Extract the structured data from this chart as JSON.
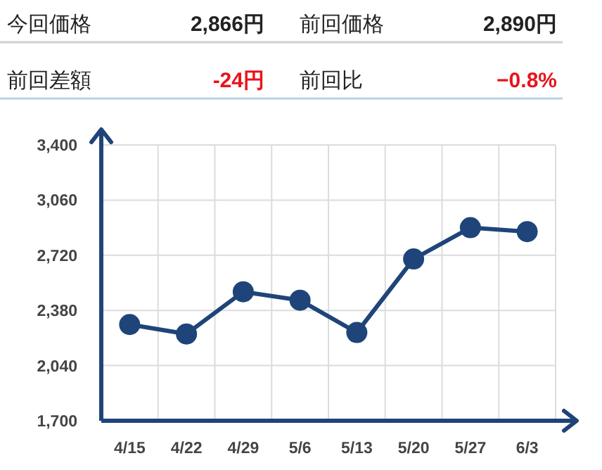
{
  "chart_data": [
    {
      "type": "other",
      "annotations": [
        "今回価格",
        "2,866円",
        "前回価格",
        "2,890円",
        "前回差額",
        "-24円",
        "前回比",
        "−0.8%"
      ]
    },
    {
      "type": "line",
      "categories": [
        "4/15",
        "4/22",
        "4/29",
        "5/6",
        "5/13",
        "5/20",
        "5/27",
        "6/3"
      ],
      "series": [
        {
          "color": "#1f4479",
          "values": [
            2293,
            2235,
            2495,
            2443,
            2244,
            2697,
            2890,
            2866
          ]
        }
      ],
      "ylim": [
        1700,
        3400
      ],
      "yticks": [
        {
          "value": 1700,
          "label": "1,700"
        },
        {
          "value": 2040,
          "label": "2,040"
        },
        {
          "value": 2380,
          "label": "2,380"
        },
        {
          "value": 2720,
          "label": "2,720"
        },
        {
          "value": 3060,
          "label": "3,060"
        },
        {
          "value": 3400,
          "label": "3,400"
        }
      ],
      "grid": true,
      "marker": "circle",
      "line_style": "solid"
    }
  ]
}
